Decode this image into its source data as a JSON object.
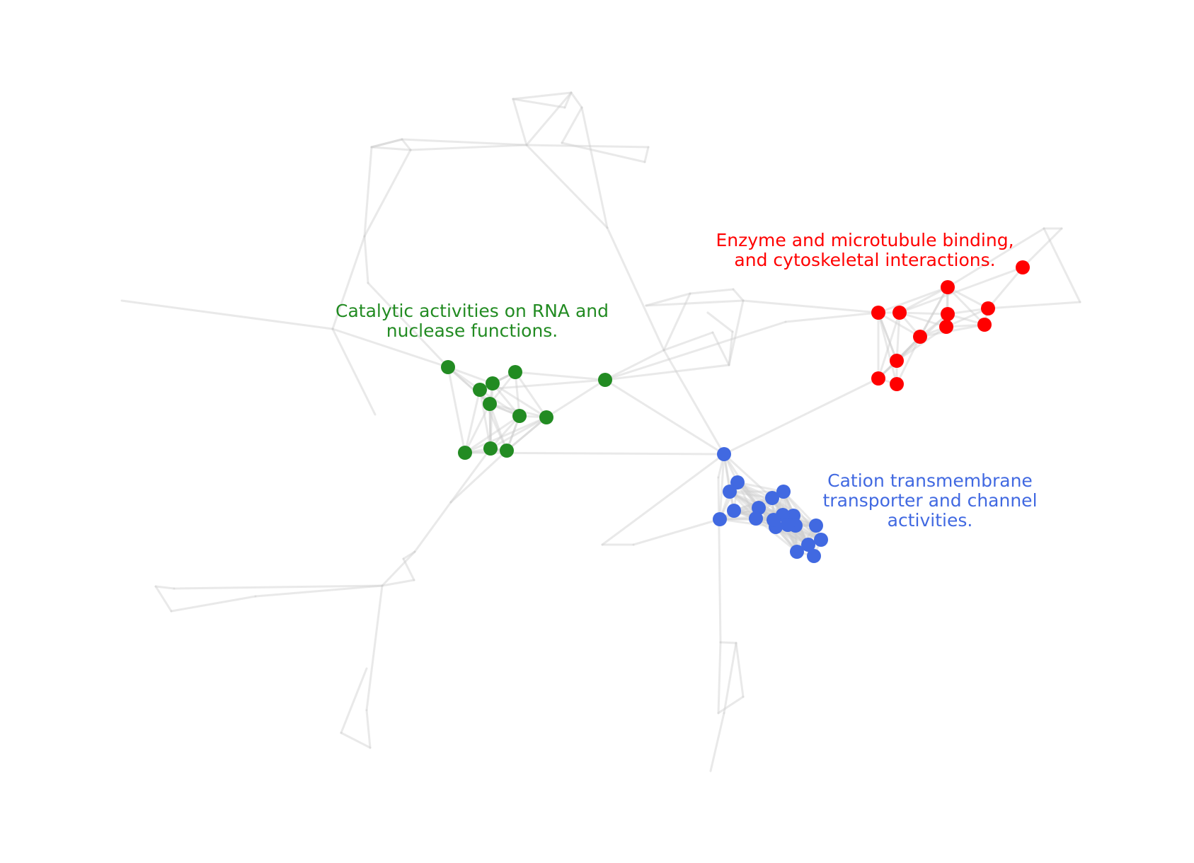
{
  "colors": {
    "green": "#228B22",
    "red": "#FF0000",
    "blue": "#4169E1",
    "edge": "#cfcfcf",
    "background": "#ffffff"
  },
  "clusters": [
    {
      "id": "green",
      "color": "#228B22",
      "label_lines": [
        "Catalytic activities on RNA and",
        "nuclease functions."
      ]
    },
    {
      "id": "red",
      "color": "#FF0000",
      "label_lines": [
        "Enzyme and microtubule binding,",
        "and cytoskeletal interactions."
      ]
    },
    {
      "id": "blue",
      "color": "#4169E1",
      "label_lines": [
        "Cation transmembrane",
        "transporter and channel",
        "activities."
      ]
    }
  ]
}
